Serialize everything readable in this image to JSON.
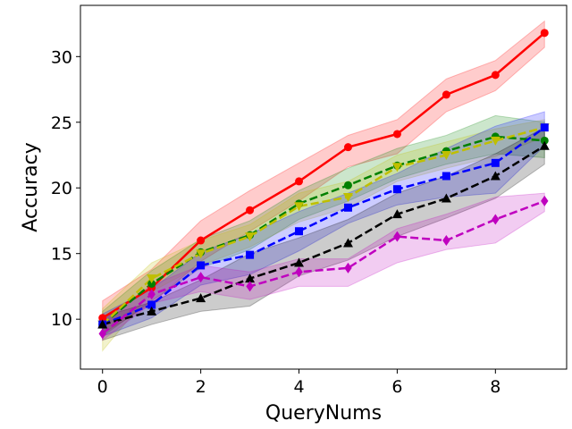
{
  "chart_data": {
    "type": "line",
    "title": "",
    "xlabel": "QueryNums",
    "ylabel": "Accuracy",
    "xlim": [
      -0.45,
      9.45
    ],
    "ylim": [
      6.2,
      33.9
    ],
    "xticks": [
      0,
      2,
      4,
      6,
      8
    ],
    "yticks": [
      10,
      15,
      20,
      25,
      30
    ],
    "x": [
      0,
      1,
      2,
      3,
      4,
      5,
      6,
      7,
      8,
      9
    ],
    "legend": "none",
    "series": [
      {
        "name": "red",
        "color": "#ff0000",
        "dash": "solid",
        "marker": "circle",
        "values": [
          10.1,
          12.4,
          16.0,
          18.3,
          20.5,
          23.1,
          24.1,
          27.1,
          28.6,
          31.8
        ],
        "lower": [
          8.9,
          11.2,
          14.4,
          16.7,
          19.0,
          21.6,
          22.6,
          25.8,
          27.4,
          30.7
        ],
        "upper": [
          11.4,
          13.8,
          17.5,
          19.8,
          21.9,
          24.0,
          25.2,
          28.3,
          29.7,
          32.7
        ]
      },
      {
        "name": "green",
        "color": "#008000",
        "dash": "dashed",
        "marker": "circle",
        "values": [
          9.6,
          12.7,
          15.1,
          16.4,
          18.8,
          20.2,
          21.7,
          22.8,
          23.9,
          23.6
        ],
        "lower": [
          8.7,
          11.4,
          13.9,
          15.3,
          17.6,
          19.0,
          20.7,
          21.8,
          22.6,
          22.3
        ],
        "upper": [
          10.6,
          13.7,
          16.1,
          17.5,
          19.8,
          21.5,
          23.0,
          24.0,
          25.5,
          25.0
        ]
      },
      {
        "name": "yellow",
        "color": "#bfbf00",
        "dash": "dashed",
        "marker": "triangle-down",
        "values": [
          9.6,
          13.1,
          15.0,
          16.3,
          18.6,
          19.3,
          21.6,
          22.5,
          23.6,
          24.6
        ],
        "lower": [
          7.6,
          12.1,
          14.1,
          15.5,
          17.4,
          18.5,
          20.5,
          21.5,
          22.4,
          23.9
        ],
        "upper": [
          10.8,
          14.3,
          16.0,
          17.2,
          19.6,
          20.5,
          22.5,
          23.5,
          24.5,
          25.2
        ]
      },
      {
        "name": "blue",
        "color": "#0000ff",
        "dash": "dashed",
        "marker": "square",
        "values": [
          9.6,
          11.1,
          14.1,
          14.9,
          16.7,
          18.5,
          19.9,
          20.9,
          21.9,
          24.6
        ],
        "lower": [
          8.7,
          10.1,
          12.6,
          13.4,
          15.2,
          17.3,
          18.7,
          19.3,
          19.6,
          23.2
        ],
        "upper": [
          10.4,
          12.3,
          15.1,
          16.5,
          18.2,
          19.6,
          21.1,
          23.0,
          24.7,
          25.8
        ]
      },
      {
        "name": "black",
        "color": "#000000",
        "dash": "dashed",
        "marker": "triangle-up",
        "values": [
          9.6,
          10.6,
          11.6,
          13.1,
          14.3,
          15.8,
          18.0,
          19.2,
          20.9,
          23.2
        ],
        "lower": [
          8.4,
          9.6,
          10.6,
          11.0,
          13.3,
          14.5,
          16.3,
          17.7,
          19.2,
          21.8
        ],
        "upper": [
          10.2,
          11.3,
          13.0,
          15.0,
          16.2,
          17.6,
          19.6,
          20.9,
          22.6,
          24.6
        ]
      },
      {
        "name": "magenta",
        "color": "#bf00bf",
        "dash": "dashed",
        "marker": "diamond",
        "values": [
          8.9,
          11.9,
          13.2,
          12.5,
          13.6,
          13.9,
          16.3,
          16.0,
          17.6,
          19.0
        ],
        "lower": [
          8.4,
          11.2,
          12.1,
          11.5,
          12.5,
          12.5,
          14.3,
          15.3,
          15.8,
          18.2
        ],
        "upper": [
          9.9,
          12.6,
          14.1,
          13.6,
          14.6,
          14.6,
          16.9,
          18.0,
          19.3,
          19.6
        ]
      }
    ]
  }
}
